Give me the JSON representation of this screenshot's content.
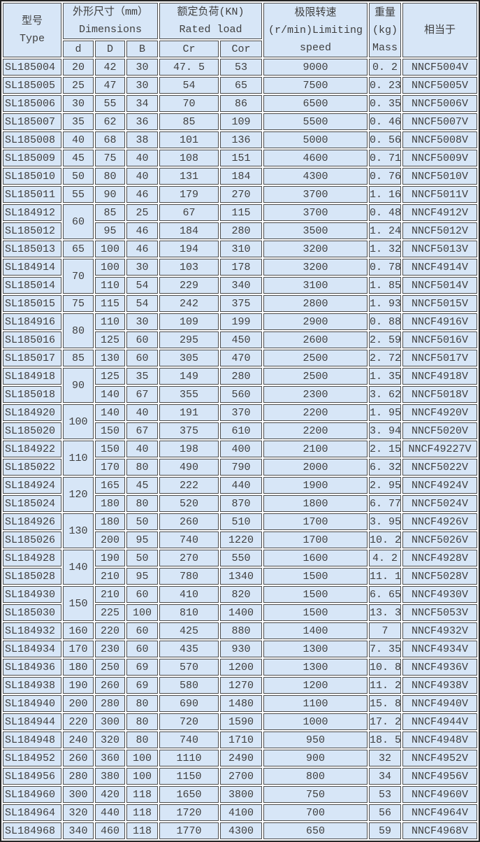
{
  "colors": {
    "cell_bg": "#d7e6f7",
    "cell_border": "#4d4d4d",
    "outer_border": "#262626",
    "text": "#3f3f3f",
    "gap": "#ffffff"
  },
  "header": {
    "type_zh": "型号",
    "type_en": "Type",
    "dims_zh": "外形尺寸（mm）",
    "dims_en": "Dimensions",
    "sub_d": "d",
    "sub_D": "D",
    "sub_B": "B",
    "load_zh": "额定负荷(KN)",
    "load_en": "Rated load",
    "sub_cr": "Cr",
    "sub_cor": "Cor",
    "speed_l1": "极限转速",
    "speed_l2": "(r/min)Limiting",
    "speed_l3": "speed",
    "mass_l1": "重量",
    "mass_l2": "(kg)",
    "mass_l3": "Mass",
    "equiv_zh": "相当于"
  },
  "rows": [
    {
      "type": "SL185004",
      "d": "20",
      "D": "42",
      "B": "30",
      "cr": "47. 5",
      "cor": "53",
      "speed": "9000",
      "mass": "0. 2",
      "equiv": "NNCF5004V"
    },
    {
      "type": "SL185005",
      "d": "25",
      "D": "47",
      "B": "30",
      "cr": "54",
      "cor": "65",
      "speed": "7500",
      "mass": "0. 23",
      "equiv": "NNCF5005V"
    },
    {
      "type": "SL185006",
      "d": "30",
      "D": "55",
      "B": "34",
      "cr": "70",
      "cor": "86",
      "speed": "6500",
      "mass": "0. 35",
      "equiv": "NNCF5006V"
    },
    {
      "type": "SL185007",
      "d": "35",
      "D": "62",
      "B": "36",
      "cr": "85",
      "cor": "109",
      "speed": "5500",
      "mass": "0. 46",
      "equiv": "NNCF5007V"
    },
    {
      "type": "SL185008",
      "d": "40",
      "D": "68",
      "B": "38",
      "cr": "101",
      "cor": "136",
      "speed": "5000",
      "mass": "0. 56",
      "equiv": "NNCF5008V"
    },
    {
      "type": "SL185009",
      "d": "45",
      "D": "75",
      "B": "40",
      "cr": "108",
      "cor": "151",
      "speed": "4600",
      "mass": "0. 71",
      "equiv": "NNCF5009V"
    },
    {
      "type": "SL185010",
      "d": "50",
      "D": "80",
      "B": "40",
      "cr": "131",
      "cor": "184",
      "speed": "4300",
      "mass": "0. 76",
      "equiv": "NNCF5010V"
    },
    {
      "type": "SL185011",
      "d": "55",
      "D": "90",
      "B": "46",
      "cr": "179",
      "cor": "270",
      "speed": "3700",
      "mass": "1. 16",
      "equiv": "NNCF5011V"
    },
    {
      "type": "SL184912",
      "d": "60",
      "dspan": 2,
      "D": "85",
      "B": "25",
      "cr": "67",
      "cor": "115",
      "speed": "3700",
      "mass": "0. 48",
      "equiv": "NNCF4912V"
    },
    {
      "type": "SL185012",
      "d": null,
      "D": "95",
      "B": "46",
      "cr": "184",
      "cor": "280",
      "speed": "3500",
      "mass": "1. 24",
      "equiv": "NNCF5012V"
    },
    {
      "type": "SL185013",
      "d": "65",
      "D": "100",
      "B": "46",
      "cr": "194",
      "cor": "310",
      "speed": "3200",
      "mass": "1. 32",
      "equiv": "NNCF5013V"
    },
    {
      "type": "SL184914",
      "d": "70",
      "dspan": 2,
      "D": "100",
      "B": "30",
      "cr": "103",
      "cor": "178",
      "speed": "3200",
      "mass": "0. 78",
      "equiv": "NNCF4914V"
    },
    {
      "type": "SL185014",
      "d": null,
      "D": "110",
      "B": "54",
      "cr": "229",
      "cor": "340",
      "speed": "3100",
      "mass": "1. 85",
      "equiv": "NNCF5014V"
    },
    {
      "type": "SL185015",
      "d": "75",
      "D": "115",
      "B": "54",
      "cr": "242",
      "cor": "375",
      "speed": "2800",
      "mass": "1. 93",
      "equiv": "NNCF5015V"
    },
    {
      "type": "SL184916",
      "d": "80",
      "dspan": 2,
      "D": "110",
      "B": "30",
      "cr": "109",
      "cor": "199",
      "speed": "2900",
      "mass": "0. 88",
      "equiv": "NNCF4916V"
    },
    {
      "type": "SL185016",
      "d": null,
      "D": "125",
      "B": "60",
      "cr": "295",
      "cor": "450",
      "speed": "2600",
      "mass": "2. 59",
      "equiv": "NNCF5016V"
    },
    {
      "type": "SL185017",
      "d": "85",
      "D": "130",
      "B": "60",
      "cr": "305",
      "cor": "470",
      "speed": "2500",
      "mass": "2. 72",
      "equiv": "NNCF5017V"
    },
    {
      "type": "SL184918",
      "d": "90",
      "dspan": 2,
      "D": "125",
      "B": "35",
      "cr": "149",
      "cor": "280",
      "speed": "2500",
      "mass": "1. 35",
      "equiv": "NNCF4918V"
    },
    {
      "type": "SL185018",
      "d": null,
      "D": "140",
      "B": "67",
      "cr": "355",
      "cor": "560",
      "speed": "2300",
      "mass": "3. 62",
      "equiv": "NNCF5018V"
    },
    {
      "type": "SL184920",
      "d": "100",
      "dspan": 2,
      "D": "140",
      "B": "40",
      "cr": "191",
      "cor": "370",
      "speed": "2200",
      "mass": "1. 95",
      "equiv": "NNCF4920V"
    },
    {
      "type": "SL185020",
      "d": null,
      "D": "150",
      "B": "67",
      "cr": "375",
      "cor": "610",
      "speed": "2200",
      "mass": "3. 94",
      "equiv": "NNCF5020V"
    },
    {
      "type": "SL184922",
      "d": "110",
      "dspan": 2,
      "D": "150",
      "B": "40",
      "cr": "198",
      "cor": "400",
      "speed": "2100",
      "mass": "2. 15",
      "equiv": "NNCF49227V"
    },
    {
      "type": "SL185022",
      "d": null,
      "D": "170",
      "B": "80",
      "cr": "490",
      "cor": "790",
      "speed": "2000",
      "mass": "6. 32",
      "equiv": "NNCF5022V"
    },
    {
      "type": "SL184924",
      "d": "120",
      "dspan": 2,
      "D": "165",
      "B": "45",
      "cr": "222",
      "cor": "440",
      "speed": "1900",
      "mass": "2. 95",
      "equiv": "NNCF4924V"
    },
    {
      "type": "SL185024",
      "d": null,
      "D": "180",
      "B": "80",
      "cr": "520",
      "cor": "870",
      "speed": "1800",
      "mass": "6. 77",
      "equiv": "NNCF5024V"
    },
    {
      "type": "SL184926",
      "d": "130",
      "dspan": 2,
      "D": "180",
      "B": "50",
      "cr": "260",
      "cor": "510",
      "speed": "1700",
      "mass": "3. 95",
      "equiv": "NNCF4926V"
    },
    {
      "type": "SL185026",
      "d": null,
      "D": "200",
      "B": "95",
      "cr": "740",
      "cor": "1220",
      "speed": "1700",
      "mass": "10. 2",
      "equiv": "NNCF5026V"
    },
    {
      "type": "SL184928",
      "d": "140",
      "dspan": 2,
      "D": "190",
      "B": "50",
      "cr": "270",
      "cor": "550",
      "speed": "1600",
      "mass": "4. 2",
      "equiv": "NNCF4928V"
    },
    {
      "type": "SL185028",
      "d": null,
      "D": "210",
      "B": "95",
      "cr": "780",
      "cor": "1340",
      "speed": "1500",
      "mass": "11. 1",
      "equiv": "NNCF5028V"
    },
    {
      "type": "SL184930",
      "d": "150",
      "dspan": 2,
      "D": "210",
      "B": "60",
      "cr": "410",
      "cor": "820",
      "speed": "1500",
      "mass": "6. 65",
      "equiv": "NNCF4930V"
    },
    {
      "type": "SL185030",
      "d": null,
      "D": "225",
      "B": "100",
      "cr": "810",
      "cor": "1400",
      "speed": "1500",
      "mass": "13. 3",
      "equiv": "NNCF5053V"
    },
    {
      "type": "SL184932",
      "d": "160",
      "D": "220",
      "B": "60",
      "cr": "425",
      "cor": "880",
      "speed": "1400",
      "mass": "7",
      "equiv": "NNCF4932V"
    },
    {
      "type": "SL184934",
      "d": "170",
      "D": "230",
      "B": "60",
      "cr": "435",
      "cor": "930",
      "speed": "1300",
      "mass": "7. 35",
      "equiv": "NNCF4934V"
    },
    {
      "type": "SL184936",
      "d": "180",
      "D": "250",
      "B": "69",
      "cr": "570",
      "cor": "1200",
      "speed": "1300",
      "mass": "10. 8",
      "equiv": "NNCF4936V"
    },
    {
      "type": "SL184938",
      "d": "190",
      "D": "260",
      "B": "69",
      "cr": "580",
      "cor": "1270",
      "speed": "1200",
      "mass": "11. 2",
      "equiv": "NNCF4938V"
    },
    {
      "type": "SL184940",
      "d": "200",
      "D": "280",
      "B": "80",
      "cr": "690",
      "cor": "1480",
      "speed": "1100",
      "mass": "15. 8",
      "equiv": "NNCF4940V"
    },
    {
      "type": "SL184944",
      "d": "220",
      "D": "300",
      "B": "80",
      "cr": "720",
      "cor": "1590",
      "speed": "1000",
      "mass": "17. 2",
      "equiv": "NNCF4944V"
    },
    {
      "type": "SL184948",
      "d": "240",
      "D": "320",
      "B": "80",
      "cr": "740",
      "cor": "1710",
      "speed": "950",
      "mass": "18. 5",
      "equiv": "NNCF4948V"
    },
    {
      "type": "SL184952",
      "d": "260",
      "D": "360",
      "B": "100",
      "cr": "1110",
      "cor": "2490",
      "speed": "900",
      "mass": "32",
      "equiv": "NNCF4952V"
    },
    {
      "type": "SL184956",
      "d": "280",
      "D": "380",
      "B": "100",
      "cr": "1150",
      "cor": "2700",
      "speed": "800",
      "mass": "34",
      "equiv": "NNCF4956V"
    },
    {
      "type": "SL184960",
      "d": "300",
      "D": "420",
      "B": "118",
      "cr": "1650",
      "cor": "3800",
      "speed": "750",
      "mass": "53",
      "equiv": "NNCF4960V"
    },
    {
      "type": "SL184964",
      "d": "320",
      "D": "440",
      "B": "118",
      "cr": "1720",
      "cor": "4100",
      "speed": "700",
      "mass": "56",
      "equiv": "NNCF4964V"
    },
    {
      "type": "SL184968",
      "d": "340",
      "D": "460",
      "B": "118",
      "cr": "1770",
      "cor": "4300",
      "speed": "650",
      "mass": "59",
      "equiv": "NNCF4968V"
    }
  ]
}
